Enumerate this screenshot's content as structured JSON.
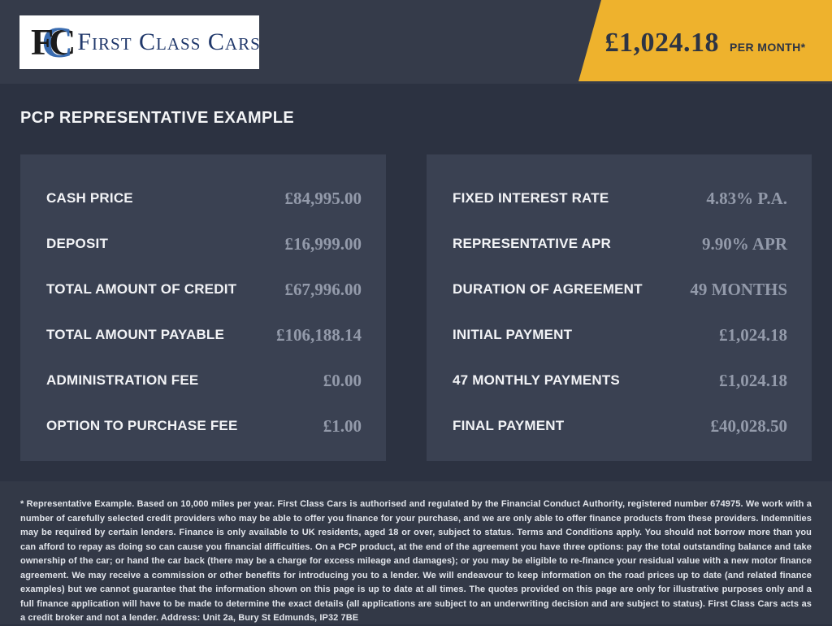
{
  "colors": {
    "body_bg": "#2c3241",
    "header_bg": "#353b4a",
    "panel_bg": "#3a4152",
    "footer_bg": "#333947",
    "accent": "#eeb22d",
    "dark_text": "#2d3444",
    "muted_value": "#939aaa"
  },
  "header": {
    "logo": {
      "monogram_1": "F",
      "monogram_2": "C",
      "monogram_3": "C",
      "name": "First Class Cars"
    },
    "price_banner": {
      "amount": "£1,024.18",
      "period": "PER MONTH*"
    }
  },
  "page_title": "PCP REPRESENTATIVE EXAMPLE",
  "panels": {
    "left": {
      "rows": [
        {
          "label": "CASH PRICE",
          "value": "£84,995.00"
        },
        {
          "label": "DEPOSIT",
          "value": "£16,999.00"
        },
        {
          "label": "TOTAL AMOUNT OF CREDIT",
          "value": "£67,996.00"
        },
        {
          "label": "TOTAL AMOUNT PAYABLE",
          "value": "£106,188.14"
        },
        {
          "label": "ADMINISTRATION FEE",
          "value": "£0.00"
        },
        {
          "label": "OPTION TO PURCHASE FEE",
          "value": "£1.00"
        }
      ]
    },
    "right": {
      "rows": [
        {
          "label": "FIXED INTEREST RATE",
          "value": "4.83% P.A."
        },
        {
          "label": "REPRESENTATIVE APR",
          "value": "9.90% APR"
        },
        {
          "label": "DURATION OF AGREEMENT",
          "value": "49 MONTHS"
        },
        {
          "label": "INITIAL PAYMENT",
          "value": "£1,024.18"
        },
        {
          "label": "47 MONTHLY PAYMENTS",
          "value": "£1,024.18"
        },
        {
          "label": "FINAL PAYMENT",
          "value": "£40,028.50"
        }
      ]
    }
  },
  "disclaimer": "* Representative Example. Based on 10,000 miles per year. First Class Cars is authorised and regulated by the Financial Conduct Authority, registered number 674975. We work with a number of carefully selected credit providers who may be able to offer you finance for your purchase, and we are only able to offer finance products from these providers. Indemnities may be required by certain lenders. Finance is only available to UK residents, aged 18 or over, subject to status. Terms and Conditions apply. You should not borrow more than you can afford to repay as doing so can cause you financial difficulties. On a PCP product, at the end of the agreement you have three options: pay the total outstanding balance and take ownership of the car; or hand the car back (there may be a charge for excess mileage and damages); or you may be eligible to re-finance your residual value with a new motor finance agreement. We may receive a commission or other benefits for introducing you to a lender. We will endeavour to keep information on the road prices up to date (and related finance examples) but we cannot guarantee that the information shown on this page is up to date at all times. The quotes provided on this page are only for illustrative purposes only and a full finance application will have to be made to determine the exact details (all applications are subject to an underwriting decision and are subject to status). First Class Cars acts as a credit broker and not a lender. Address: Unit 2a, Bury St Edmunds, IP32 7BE"
}
